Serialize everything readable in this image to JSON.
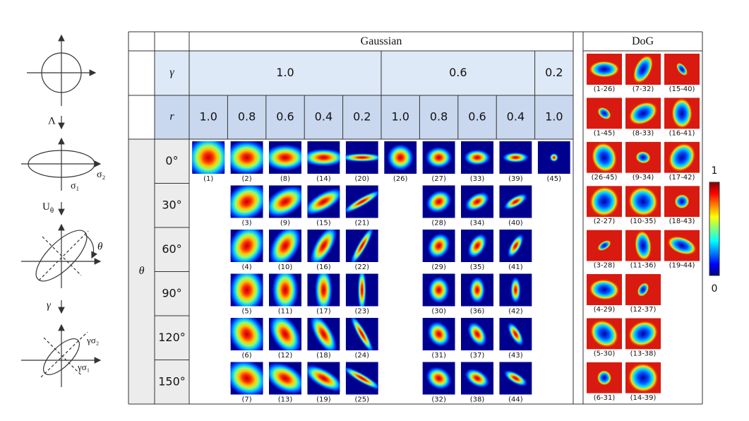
{
  "diagram": {
    "lambda": "Λ",
    "u": "U",
    "u_sub": "θ",
    "gamma": "γ",
    "sigma1": "σ₁",
    "sigma2": "σ₂",
    "theta": "θ",
    "gsigma2": "γσ₂",
    "gsigma1": "γσ₁"
  },
  "table": {
    "gaussian_title": "Gaussian",
    "dog_title": "DoG",
    "gamma_label": "γ",
    "r_label": "r",
    "theta_label": "θ",
    "gammas": [
      "1.0",
      "0.6",
      "0.2"
    ],
    "r_values": [
      [
        "1.0",
        "0.8",
        "0.6",
        "0.4",
        "0.2"
      ],
      [
        "1.0",
        "0.8",
        "0.6",
        "0.4"
      ],
      [
        "1.0"
      ]
    ],
    "thetas": [
      "0°",
      "30°",
      "60°",
      "90°",
      "120°",
      "150°"
    ],
    "gaussian_captions": [
      [
        "(1)",
        "(2)",
        "(8)",
        "(14)",
        "(20)",
        "(26)",
        "(27)",
        "(33)",
        "(39)",
        "(45)"
      ],
      [
        null,
        "(3)",
        "(9)",
        "(15)",
        "(21)",
        null,
        "(28)",
        "(34)",
        "(40)",
        null
      ],
      [
        null,
        "(4)",
        "(10)",
        "(16)",
        "(22)",
        null,
        "(29)",
        "(35)",
        "(41)",
        null
      ],
      [
        null,
        "(5)",
        "(11)",
        "(17)",
        "(23)",
        null,
        "(30)",
        "(36)",
        "(42)",
        null
      ],
      [
        null,
        "(6)",
        "(12)",
        "(18)",
        "(24)",
        null,
        "(31)",
        "(37)",
        "(43)",
        null
      ],
      [
        null,
        "(7)",
        "(13)",
        "(19)",
        "(25)",
        null,
        "(32)",
        "(38)",
        "(44)",
        null
      ]
    ],
    "dog_captions": [
      [
        "(1-26)",
        "(1-45)",
        "(26-45)",
        "(2-27)",
        "(3-28)",
        "(4-29)",
        "(5-30)",
        "(6-31)"
      ],
      [
        "(7-32)",
        "(8-33)",
        "(9-34)",
        "(10-35)",
        "(11-36)",
        "(12-37)",
        "(13-38)",
        "(14-39)"
      ],
      [
        "(15-40)",
        "(16-41)",
        "(17-42)",
        "(18-43)",
        "(19-44)"
      ]
    ]
  },
  "colorbar": {
    "max": "1",
    "min": "0"
  }
}
